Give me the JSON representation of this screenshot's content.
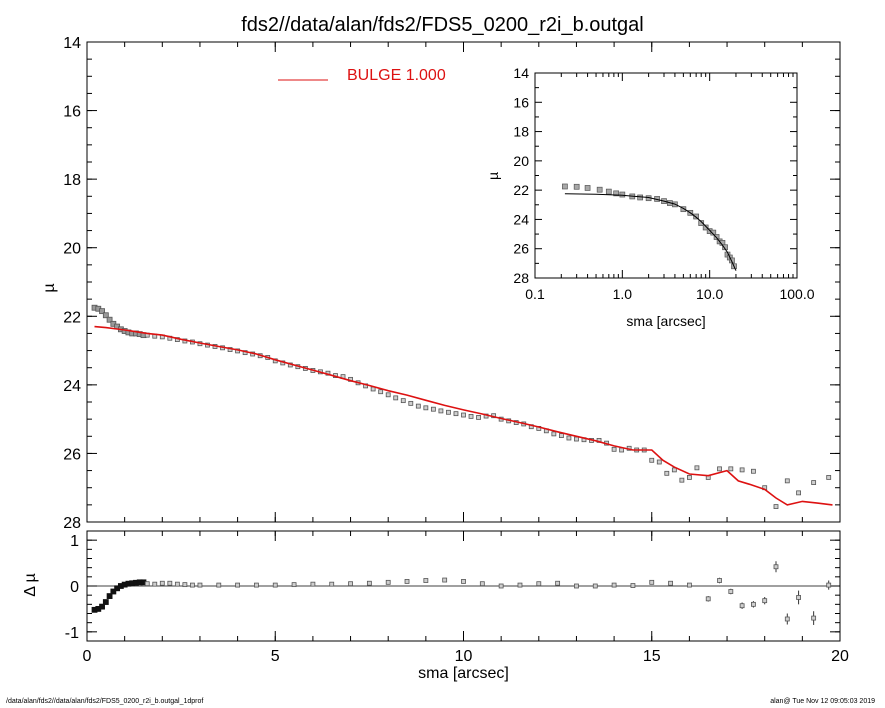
{
  "title": "fds2//data/alan/fds2/FDS5_0200_r2i_b.outgal",
  "footer": {
    "left": "/data/alan/fds2//data/alan/fds2/FDS5_0200_r2i_b.outgal_1dprof",
    "right": "alan@  Tue Nov 12 09:05:03 2019"
  },
  "colors": {
    "model": "#dd1111",
    "points": "#777777",
    "residual_near": "#111111",
    "axes": "#000000"
  },
  "chart_data": [
    {
      "type": "scatter",
      "panel": "main",
      "ylabel": "µ",
      "xlim": [
        0,
        20
      ],
      "ylim": [
        28,
        14
      ],
      "y_inverted": true,
      "x_ticks": [
        0,
        5,
        10,
        15,
        20
      ],
      "y_ticks": [
        "14",
        "16",
        "18",
        "20",
        "22",
        "24",
        "26",
        "28"
      ],
      "legend": {
        "placement": "top-center",
        "label": "BULGE  1.000",
        "color": "#dd1111"
      },
      "series": [
        {
          "kind": "points",
          "x": [
            0.2,
            0.3,
            0.4,
            0.5,
            0.6,
            0.7,
            0.8,
            0.9,
            1.0,
            1.1,
            1.2,
            1.3,
            1.4,
            1.5,
            1.6,
            1.8,
            2.0,
            2.2,
            2.4,
            2.6,
            2.8,
            3.0,
            3.2,
            3.4,
            3.6,
            3.8,
            4.0,
            4.2,
            4.4,
            4.6,
            4.8,
            5.0,
            5.2,
            5.4,
            5.6,
            5.8,
            6.0,
            6.2,
            6.4,
            6.6,
            6.8,
            7.0,
            7.2,
            7.4,
            7.6,
            7.8,
            8.0,
            8.2,
            8.4,
            8.6,
            8.8,
            9.0,
            9.2,
            9.4,
            9.6,
            9.8,
            10.0,
            10.2,
            10.4,
            10.6,
            10.8,
            11.0,
            11.2,
            11.4,
            11.6,
            11.8,
            12.0,
            12.2,
            12.4,
            12.6,
            12.8,
            13.0,
            13.2,
            13.4,
            13.6,
            13.8,
            14.0,
            14.2,
            14.4,
            14.6,
            14.8,
            15.0,
            15.2,
            15.4,
            15.6,
            15.8,
            16.0,
            16.2,
            16.5,
            16.8,
            17.1,
            17.4,
            17.7,
            18.0,
            18.3,
            18.6,
            18.9,
            19.3,
            19.7
          ],
          "y": [
            21.75,
            21.78,
            21.85,
            21.97,
            22.1,
            22.22,
            22.3,
            22.38,
            22.43,
            22.47,
            22.5,
            22.5,
            22.52,
            22.55,
            22.55,
            22.58,
            22.6,
            22.64,
            22.68,
            22.72,
            22.75,
            22.8,
            22.84,
            22.88,
            22.92,
            22.97,
            23.01,
            23.06,
            23.1,
            23.15,
            23.2,
            23.3,
            23.36,
            23.42,
            23.47,
            23.52,
            23.58,
            23.62,
            23.66,
            23.73,
            23.76,
            23.84,
            23.94,
            24.03,
            24.12,
            24.2,
            24.29,
            24.38,
            24.46,
            24.54,
            24.62,
            24.67,
            24.71,
            24.76,
            24.8,
            24.84,
            24.88,
            24.92,
            24.95,
            24.91,
            24.9,
            25.0,
            25.05,
            25.1,
            25.14,
            25.22,
            25.27,
            25.34,
            25.43,
            25.48,
            25.55,
            25.58,
            25.6,
            25.62,
            25.62,
            25.7,
            25.88,
            25.9,
            25.85,
            25.9,
            25.9,
            26.2,
            26.25,
            26.58,
            26.48,
            26.78,
            26.7,
            26.42,
            26.7,
            26.45,
            26.45,
            26.48,
            26.52,
            27.0,
            27.55,
            26.8,
            27.15,
            26.85,
            26.7
          ]
        },
        {
          "kind": "line",
          "name": "BULGE  1.000",
          "x": [
            0.2,
            0.5,
            0.8,
            1.0,
            1.3,
            1.6,
            2.0,
            2.5,
            3.0,
            3.5,
            4.0,
            4.5,
            5.0,
            5.5,
            6.0,
            6.5,
            7.0,
            7.5,
            8.0,
            8.5,
            9.0,
            9.5,
            10.0,
            10.5,
            11.0,
            11.5,
            12.0,
            12.5,
            13.0,
            13.5,
            14.0,
            14.5,
            15.0,
            15.3,
            15.6,
            16.0,
            16.5,
            17.0,
            17.3,
            17.6,
            18.0,
            18.3,
            18.6,
            19.0,
            19.4,
            19.8
          ],
          "y": [
            22.3,
            22.33,
            22.37,
            22.4,
            22.45,
            22.5,
            22.55,
            22.67,
            22.78,
            22.88,
            22.98,
            23.1,
            23.27,
            23.42,
            23.57,
            23.72,
            23.88,
            24.02,
            24.17,
            24.3,
            24.45,
            24.6,
            24.73,
            24.85,
            24.98,
            25.1,
            25.23,
            25.37,
            25.5,
            25.63,
            25.78,
            25.9,
            25.9,
            26.2,
            26.4,
            26.6,
            26.65,
            26.5,
            26.8,
            26.9,
            27.05,
            27.3,
            27.5,
            27.4,
            27.45,
            27.5
          ]
        }
      ]
    },
    {
      "type": "scatter",
      "panel": "inset",
      "xlabel": "sma [arcsec]",
      "ylabel": "µ",
      "x_scale": "log",
      "xlim": [
        0.1,
        100.0
      ],
      "ylim": [
        28,
        14
      ],
      "y_inverted": true,
      "x_ticks": [
        "0.1",
        "1.0",
        "10.0",
        "100.0"
      ],
      "y_ticks": [
        "14",
        "16",
        "18",
        "20",
        "22",
        "24",
        "26",
        "28"
      ],
      "series": [
        {
          "kind": "points",
          "x": [
            0.22,
            0.3,
            0.4,
            0.55,
            0.7,
            0.85,
            1.0,
            1.3,
            1.6,
            2.0,
            2.5,
            3.0,
            3.5,
            4.0,
            5.0,
            6.0,
            7.0,
            8.0,
            9.0,
            10.0,
            11.0,
            12.0,
            13.0,
            14.0,
            15.0,
            16.0,
            17.0,
            18.0,
            19.0
          ],
          "y": [
            21.75,
            21.77,
            21.85,
            21.97,
            22.1,
            22.22,
            22.3,
            22.43,
            22.5,
            22.55,
            22.6,
            22.75,
            22.88,
            22.97,
            23.3,
            23.55,
            23.8,
            24.25,
            24.55,
            24.8,
            24.9,
            25.2,
            25.5,
            25.6,
            25.9,
            26.4,
            26.6,
            26.8,
            27.2
          ]
        },
        {
          "kind": "line",
          "x": [
            0.22,
            0.5,
            1.0,
            2.0,
            3.0,
            4.0,
            5.0,
            6.0,
            7.0,
            8.0,
            10.0,
            12.0,
            14.0,
            16.0,
            18.0,
            20.0
          ],
          "y": [
            22.25,
            22.28,
            22.35,
            22.5,
            22.75,
            22.95,
            23.25,
            23.55,
            23.85,
            24.15,
            24.75,
            25.25,
            25.75,
            26.25,
            26.9,
            27.5
          ]
        }
      ]
    },
    {
      "type": "scatter",
      "panel": "residual",
      "xlabel": "sma [arcsec]",
      "ylabel": "Δ µ",
      "xlim": [
        0,
        20
      ],
      "ylim": [
        -1.2,
        1.2
      ],
      "x_ticks": [
        "0",
        "5",
        "10",
        "15",
        "20"
      ],
      "y_ticks": [
        "-1",
        "0",
        "1"
      ],
      "series": [
        {
          "kind": "points",
          "x": [
            0.2,
            0.3,
            0.4,
            0.5,
            0.6,
            0.7,
            0.8,
            0.9,
            1.0,
            1.1,
            1.2,
            1.3,
            1.4,
            1.5,
            1.6,
            1.8,
            2.0,
            2.2,
            2.4,
            2.6,
            2.8,
            3.0,
            3.5,
            4.0,
            4.5,
            5.0,
            5.5,
            6.0,
            6.5,
            7.0,
            7.5,
            8.0,
            8.5,
            9.0,
            9.5,
            10.0,
            10.5,
            11.0,
            11.5,
            12.0,
            12.5,
            13.0,
            13.5,
            14.0,
            14.5,
            15.0,
            15.5,
            16.0,
            16.5,
            16.8,
            17.1,
            17.4,
            17.7,
            18.0,
            18.3,
            18.6,
            18.9,
            19.3,
            19.7
          ],
          "y": [
            -0.52,
            -0.5,
            -0.45,
            -0.35,
            -0.22,
            -0.12,
            -0.05,
            0.0,
            0.03,
            0.05,
            0.06,
            0.07,
            0.08,
            0.08,
            0.05,
            0.04,
            0.06,
            0.06,
            0.04,
            0.03,
            0.02,
            0.02,
            0.02,
            0.02,
            0.02,
            0.02,
            0.03,
            0.04,
            0.04,
            0.05,
            0.06,
            0.08,
            0.1,
            0.12,
            0.13,
            0.1,
            0.05,
            0.0,
            0.02,
            0.05,
            0.06,
            0.0,
            0.0,
            0.02,
            0.01,
            0.08,
            0.06,
            0.02,
            -0.28,
            0.12,
            -0.12,
            -0.43,
            -0.4,
            -0.32,
            0.42,
            -0.72,
            -0.25,
            -0.7,
            0.02
          ],
          "err": [
            0,
            0,
            0,
            0,
            0,
            0,
            0,
            0,
            0,
            0,
            0,
            0,
            0,
            0,
            0,
            0,
            0,
            0,
            0,
            0,
            0,
            0,
            0,
            0,
            0,
            0,
            0,
            0,
            0,
            0,
            0,
            0,
            0,
            0,
            0,
            0,
            0,
            0,
            0,
            0,
            0,
            0,
            0,
            0,
            0,
            0,
            0,
            0,
            0.06,
            0.06,
            0.06,
            0.07,
            0.07,
            0.08,
            0.12,
            0.12,
            0.15,
            0.15,
            0.1
          ]
        }
      ]
    }
  ]
}
